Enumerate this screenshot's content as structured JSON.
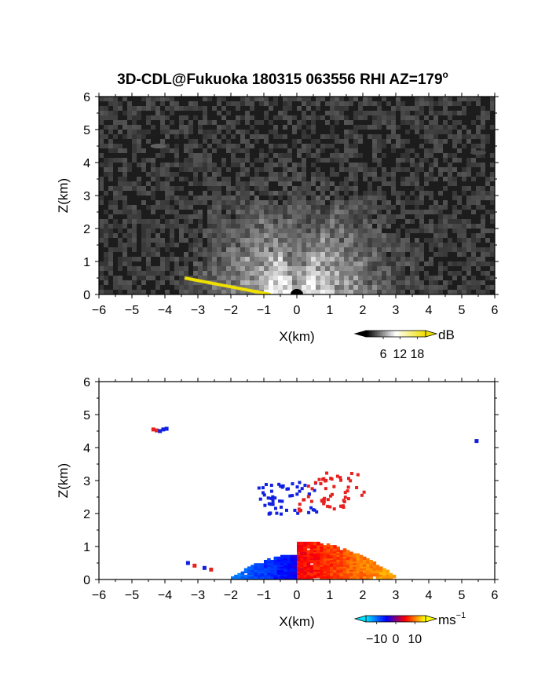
{
  "figure": {
    "title": "3D-CDL@Fukuoka 180315 063556 RHI AZ=179",
    "title_sup": "o"
  },
  "chart_data": [
    {
      "type": "heatmap",
      "name": "reflectivity",
      "xlabel": "X(km)",
      "ylabel": "Z(km)",
      "xlim": [
        -6,
        6
      ],
      "ylim": [
        0,
        6
      ],
      "xticks": [
        -6,
        -5,
        -4,
        -3,
        -2,
        -1,
        0,
        1,
        2,
        3,
        4,
        5,
        6
      ],
      "yticks": [
        0,
        1,
        2,
        3,
        4,
        5,
        6
      ],
      "colorbar": {
        "unit": "dB",
        "ticks": [
          "6",
          "12",
          "18"
        ],
        "range": [
          0,
          21
        ],
        "colors": [
          "#000000",
          "#ffffff",
          "#f0e000"
        ]
      },
      "features": [
        {
          "kind": "fan",
          "origin": [
            0,
            0
          ],
          "radius_km": 3.5,
          "max_elevation_deg": 50,
          "peak_dB": 20
        },
        {
          "kind": "blob",
          "x": -4.2,
          "z": 4.5,
          "dB": 8
        },
        {
          "kind": "blob",
          "x": 5.5,
          "z": 4.3,
          "dB": 6
        },
        {
          "kind": "ground_clutter",
          "x": [
            -3.4,
            -0.8
          ],
          "z": [
            0.5,
            0.0
          ],
          "dB": 21
        }
      ]
    },
    {
      "type": "heatmap",
      "name": "doppler_velocity",
      "xlabel": "X(km)",
      "ylabel": "Z(km)",
      "xlim": [
        -6,
        6
      ],
      "ylim": [
        0,
        6
      ],
      "xticks": [
        -6,
        -5,
        -4,
        -3,
        -2,
        -1,
        0,
        1,
        2,
        3,
        4,
        5,
        6
      ],
      "yticks": [
        0,
        1,
        2,
        3,
        4,
        5,
        6
      ],
      "colorbar": {
        "unit": "ms",
        "unit_sup": "−1",
        "ticks": [
          "−10",
          "0",
          "10"
        ],
        "range": [
          -15,
          15
        ],
        "colors": [
          "#00e0ff",
          "#0000ff",
          "#ff0000",
          "#ffff00"
        ]
      },
      "regions": [
        {
          "kind": "negative_lobe",
          "x": [
            -2.0,
            0.0
          ],
          "z": [
            0.0,
            0.7
          ],
          "velocity_range": [
            -12,
            -3
          ]
        },
        {
          "kind": "positive_lobe",
          "x": [
            0.0,
            3.0
          ],
          "z": [
            0.0,
            1.1
          ],
          "velocity_range": [
            3,
            14
          ]
        },
        {
          "kind": "scattered",
          "x": [
            -1.2,
            0.6
          ],
          "z": [
            2.0,
            3.0
          ],
          "velocity_range": [
            -5,
            -2
          ]
        },
        {
          "kind": "scattered",
          "x": [
            0.0,
            2.0
          ],
          "z": [
            2.1,
            3.3
          ],
          "velocity_range": [
            2,
            5
          ]
        }
      ],
      "points": [
        {
          "x": -4.35,
          "z": 4.55,
          "v": 4
        },
        {
          "x": -4.25,
          "z": 4.52,
          "v": 5
        },
        {
          "x": -4.15,
          "z": 4.5,
          "v": -4
        },
        {
          "x": -4.05,
          "z": 4.55,
          "v": -5
        },
        {
          "x": -3.95,
          "z": 4.57,
          "v": -4
        },
        {
          "x": 5.45,
          "z": 4.2,
          "v": -5
        },
        {
          "x": -3.3,
          "z": 0.5,
          "v": -4
        },
        {
          "x": -3.1,
          "z": 0.42,
          "v": 4
        },
        {
          "x": -2.8,
          "z": 0.35,
          "v": -4
        },
        {
          "x": -2.6,
          "z": 0.3,
          "v": 4
        }
      ]
    }
  ]
}
